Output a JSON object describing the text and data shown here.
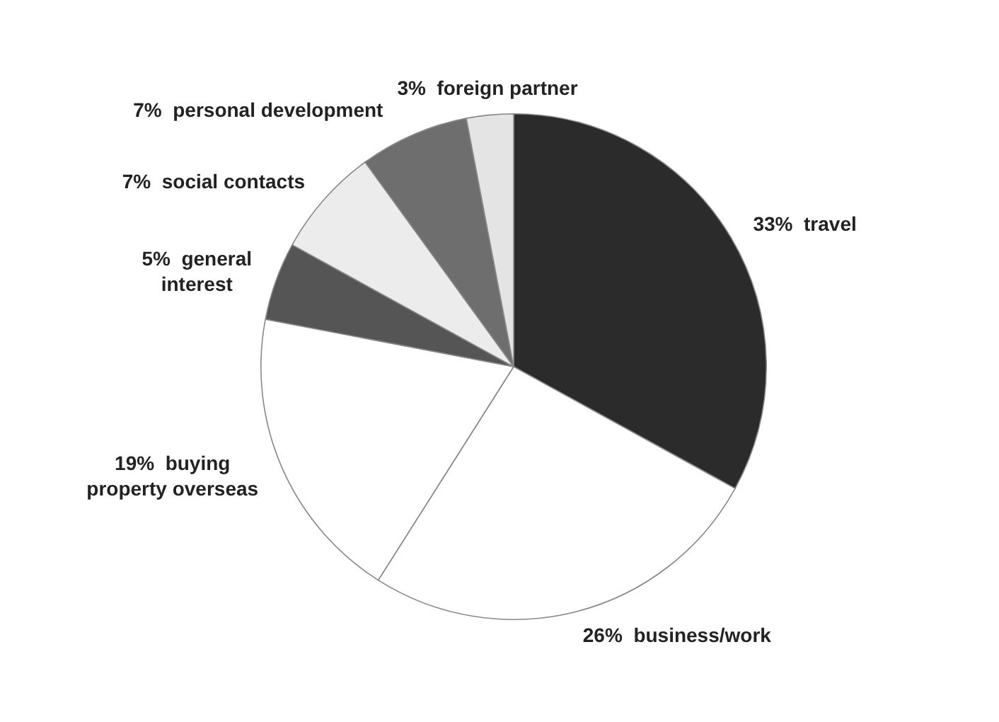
{
  "chart_data": {
    "type": "pie",
    "categories": [
      "travel",
      "business/work",
      "buying property overseas",
      "general interest",
      "social contacts",
      "personal development",
      "foreign partner"
    ],
    "values": [
      33,
      26,
      19,
      5,
      7,
      7,
      3
    ],
    "value_labels": [
      "33%",
      "26%",
      "19%",
      "5%",
      "7%",
      "7%",
      "3%"
    ],
    "colors": [
      "#2b2b2b",
      "#ffffff",
      "#ffffff",
      "#555555",
      "#ececec",
      "#6e6e6e",
      "#e4e4e4"
    ],
    "legend": false
  }
}
